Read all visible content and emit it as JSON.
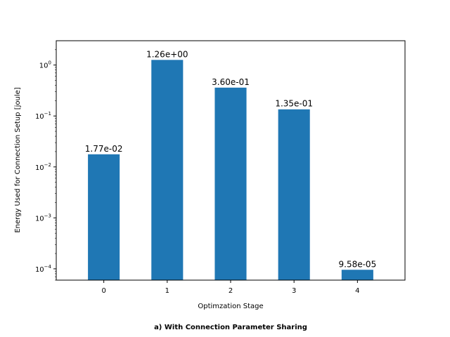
{
  "chart_data": {
    "type": "bar",
    "title": "",
    "xlabel": "Optimzation Stage",
    "ylabel": "Energy Used for Connection Setup [joule]",
    "yscale": "log",
    "ylim": [
      6e-05,
      3
    ],
    "categories": [
      "0",
      "1",
      "2",
      "3",
      "4"
    ],
    "values": [
      0.0177,
      1.26,
      0.36,
      0.135,
      9.58e-05
    ],
    "data_labels": [
      "1.77e-02",
      "1.26e+00",
      "3.60e-01",
      "1.35e-01",
      "9.58e-05"
    ],
    "ytick_values": [
      0.0001,
      0.001,
      0.01,
      0.1,
      1
    ],
    "ytick_exponents": [
      "−4",
      "−3",
      "−2",
      "−1",
      "0"
    ],
    "ytick_base": "10",
    "bar_color": "#1f77b4",
    "grid": false,
    "legend": "none"
  },
  "caption": "a) With Connection Parameter Sharing"
}
